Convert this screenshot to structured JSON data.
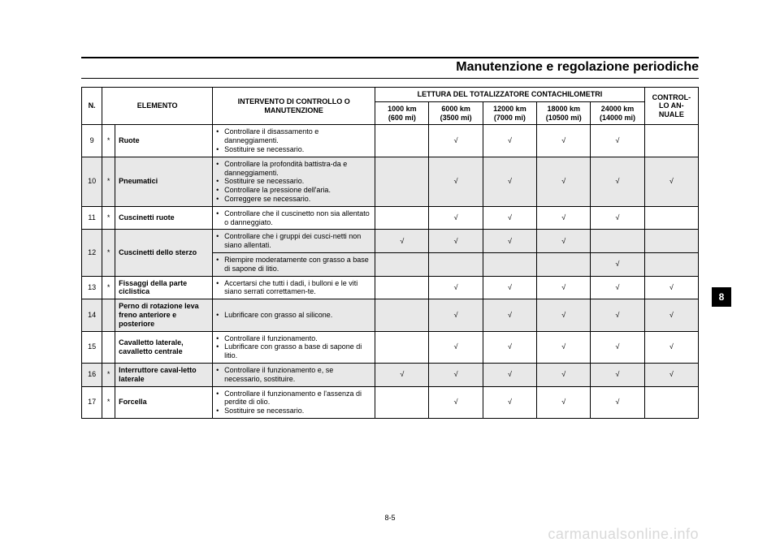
{
  "page": {
    "title": "Manutenzione e regolazione periodiche",
    "footer": "8-5",
    "side_tab": "8",
    "watermark": "carmanualsonline.info"
  },
  "headers": {
    "n": "N.",
    "elemento": "ELEMENTO",
    "intervento": "INTERVENTO DI CONTROLLO O MANUTENZIONE",
    "lettura": "LETTURA DEL TOTALIZZATORE CONTACHILOMETRI",
    "annuale": "CONTROL-LO AN-NUALE",
    "km": [
      {
        "top": "1000 km",
        "bot": "(600 mi)"
      },
      {
        "top": "6000 km",
        "bot": "(3500 mi)"
      },
      {
        "top": "12000 km",
        "bot": "(7000 mi)"
      },
      {
        "top": "18000 km",
        "bot": "(10500 mi)"
      },
      {
        "top": "24000 km",
        "bot": "(14000 mi)"
      }
    ]
  },
  "check": "√",
  "rows": [
    {
      "n": "9",
      "star": "*",
      "elem": "Ruote",
      "shaded": false,
      "intv": [
        "Controllare il disassamento e danneggiamenti.",
        "Sostituire se necessario."
      ],
      "marks": [
        "",
        "√",
        "√",
        "√",
        "√",
        ""
      ]
    },
    {
      "n": "10",
      "star": "*",
      "elem": "Pneumatici",
      "shaded": true,
      "intv": [
        "Controllare la profondità battistra-da e danneggiamenti.",
        "Sostituire se necessario.",
        "Controllare la pressione dell'aria.",
        "Correggere se necessario."
      ],
      "marks": [
        "",
        "√",
        "√",
        "√",
        "√",
        "√"
      ]
    },
    {
      "n": "11",
      "star": "*",
      "elem": "Cuscinetti ruote",
      "shaded": false,
      "intv": [
        "Controllare che il cuscinetto non sia allentato o danneggiato."
      ],
      "marks": [
        "",
        "√",
        "√",
        "√",
        "√",
        ""
      ]
    },
    {
      "n": "12",
      "star": "*",
      "elem": "Cuscinetti dello sterzo",
      "shaded": true,
      "subrows": [
        {
          "intv": [
            "Controllare che i gruppi dei cusci-netti non siano allentati."
          ],
          "marks": [
            "√",
            "√",
            "√",
            "√",
            "",
            ""
          ]
        },
        {
          "intv": [
            "Riempire moderatamente con grasso a base di sapone di litio."
          ],
          "marks": [
            "",
            "",
            "",
            "",
            "√",
            ""
          ]
        }
      ]
    },
    {
      "n": "13",
      "star": "*",
      "elem": "Fissaggi della parte ciclistica",
      "shaded": false,
      "intv": [
        "Accertarsi che tutti i dadi, i bulloni e le viti siano serrati correttamen-te."
      ],
      "marks": [
        "",
        "√",
        "√",
        "√",
        "√",
        "√"
      ]
    },
    {
      "n": "14",
      "star": "",
      "elem": "Perno di rotazione leva freno anteriore e posteriore",
      "shaded": true,
      "intv": [
        "Lubrificare con grasso al silicone."
      ],
      "marks": [
        "",
        "√",
        "√",
        "√",
        "√",
        "√"
      ]
    },
    {
      "n": "15",
      "star": "",
      "elem": "Cavalletto laterale, cavalletto centrale",
      "shaded": false,
      "intv": [
        "Controllare il funzionamento.",
        "Lubrificare con grasso a base di sapone di litio."
      ],
      "marks": [
        "",
        "√",
        "√",
        "√",
        "√",
        "√"
      ]
    },
    {
      "n": "16",
      "star": "*",
      "elem": "Interruttore caval-letto laterale",
      "shaded": true,
      "intv": [
        "Controllare il funzionamento e, se necessario, sostituire."
      ],
      "marks": [
        "√",
        "√",
        "√",
        "√",
        "√",
        "√"
      ]
    },
    {
      "n": "17",
      "star": "*",
      "elem": "Forcella",
      "shaded": false,
      "intv": [
        "Controllare il funzionamento e l'assenza di perdite di olio.",
        "Sostituire se necessario."
      ],
      "marks": [
        "",
        "√",
        "√",
        "√",
        "√",
        ""
      ]
    }
  ]
}
